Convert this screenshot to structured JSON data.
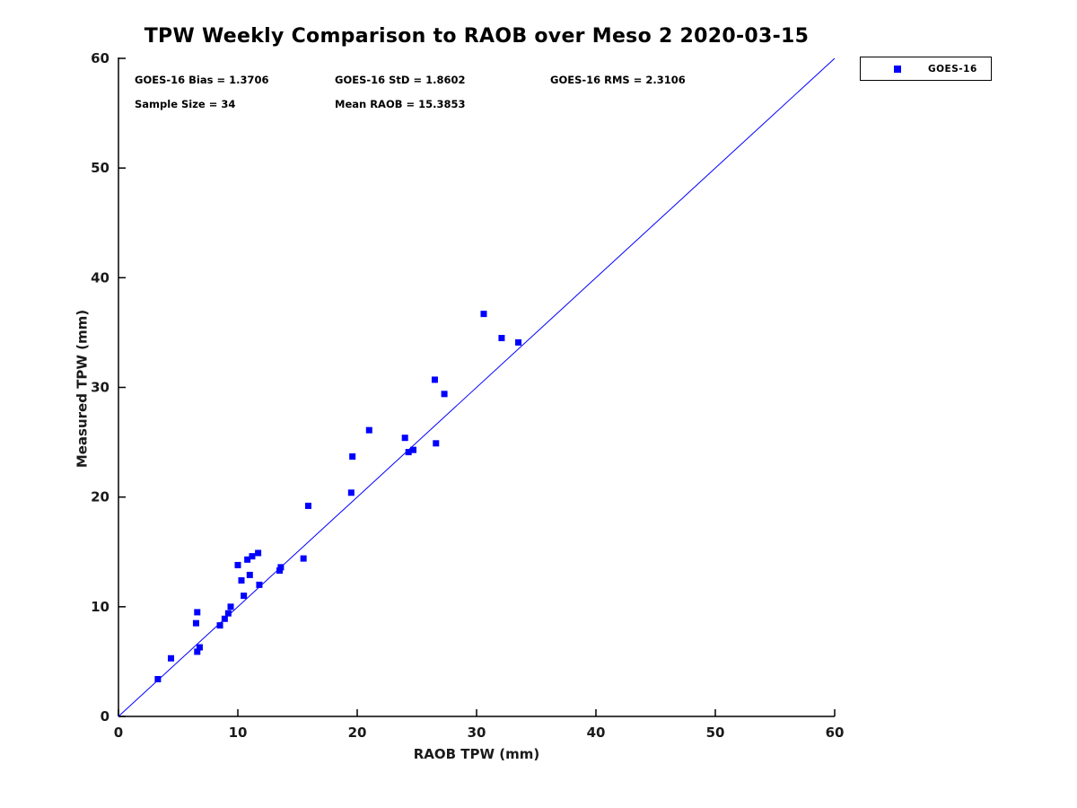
{
  "title": "TPW Weekly Comparison to RAOB over Meso 2 2020-03-15",
  "stats": {
    "bias": "GOES-16 Bias = 1.3706",
    "std": "GOES-16 StD = 1.8602",
    "rms": "GOES-16 RMS = 2.3106",
    "sample_size": "Sample Size = 34",
    "mean_raob": "Mean RAOB = 15.3853"
  },
  "legend": {
    "label": "GOES-16",
    "marker_color": "#0000ff"
  },
  "chart_data": {
    "type": "scatter",
    "title": "TPW Weekly Comparison to RAOB over Meso 2 2020-03-15",
    "xlabel": "RAOB TPW (mm)",
    "ylabel": "Measured TPW (mm)",
    "xlim": [
      0,
      60
    ],
    "ylim": [
      0,
      60
    ],
    "xticks": [
      0,
      10,
      20,
      30,
      40,
      50,
      60
    ],
    "yticks": [
      0,
      10,
      20,
      30,
      40,
      50,
      60
    ],
    "grid": false,
    "legend_position": "top-right-outside",
    "reference_line": {
      "from": [
        0,
        0
      ],
      "to": [
        60,
        60
      ],
      "color": "#0000ff",
      "width": 1
    },
    "series": [
      {
        "name": "GOES-16",
        "marker": "square",
        "color": "#0000ff",
        "points": [
          [
            3.3,
            3.4
          ],
          [
            4.4,
            5.3
          ],
          [
            6.5,
            8.5
          ],
          [
            6.6,
            9.5
          ],
          [
            6.6,
            5.9
          ],
          [
            6.8,
            6.3
          ],
          [
            8.5,
            8.3
          ],
          [
            8.9,
            8.9
          ],
          [
            9.2,
            9.4
          ],
          [
            9.4,
            10.0
          ],
          [
            10.0,
            13.8
          ],
          [
            10.3,
            12.4
          ],
          [
            10.5,
            11.0
          ],
          [
            10.8,
            14.3
          ],
          [
            11.0,
            12.9
          ],
          [
            11.2,
            14.6
          ],
          [
            11.7,
            14.9
          ],
          [
            11.8,
            12.0
          ],
          [
            13.5,
            13.3
          ],
          [
            13.6,
            13.6
          ],
          [
            15.5,
            14.4
          ],
          [
            15.9,
            19.2
          ],
          [
            19.5,
            20.4
          ],
          [
            19.6,
            23.7
          ],
          [
            21.0,
            26.1
          ],
          [
            24.0,
            25.4
          ],
          [
            24.3,
            24.1
          ],
          [
            24.7,
            24.3
          ],
          [
            26.5,
            30.7
          ],
          [
            26.6,
            24.9
          ],
          [
            27.3,
            29.4
          ],
          [
            30.6,
            36.7
          ],
          [
            32.1,
            34.5
          ],
          [
            33.5,
            34.1
          ]
        ]
      }
    ]
  }
}
